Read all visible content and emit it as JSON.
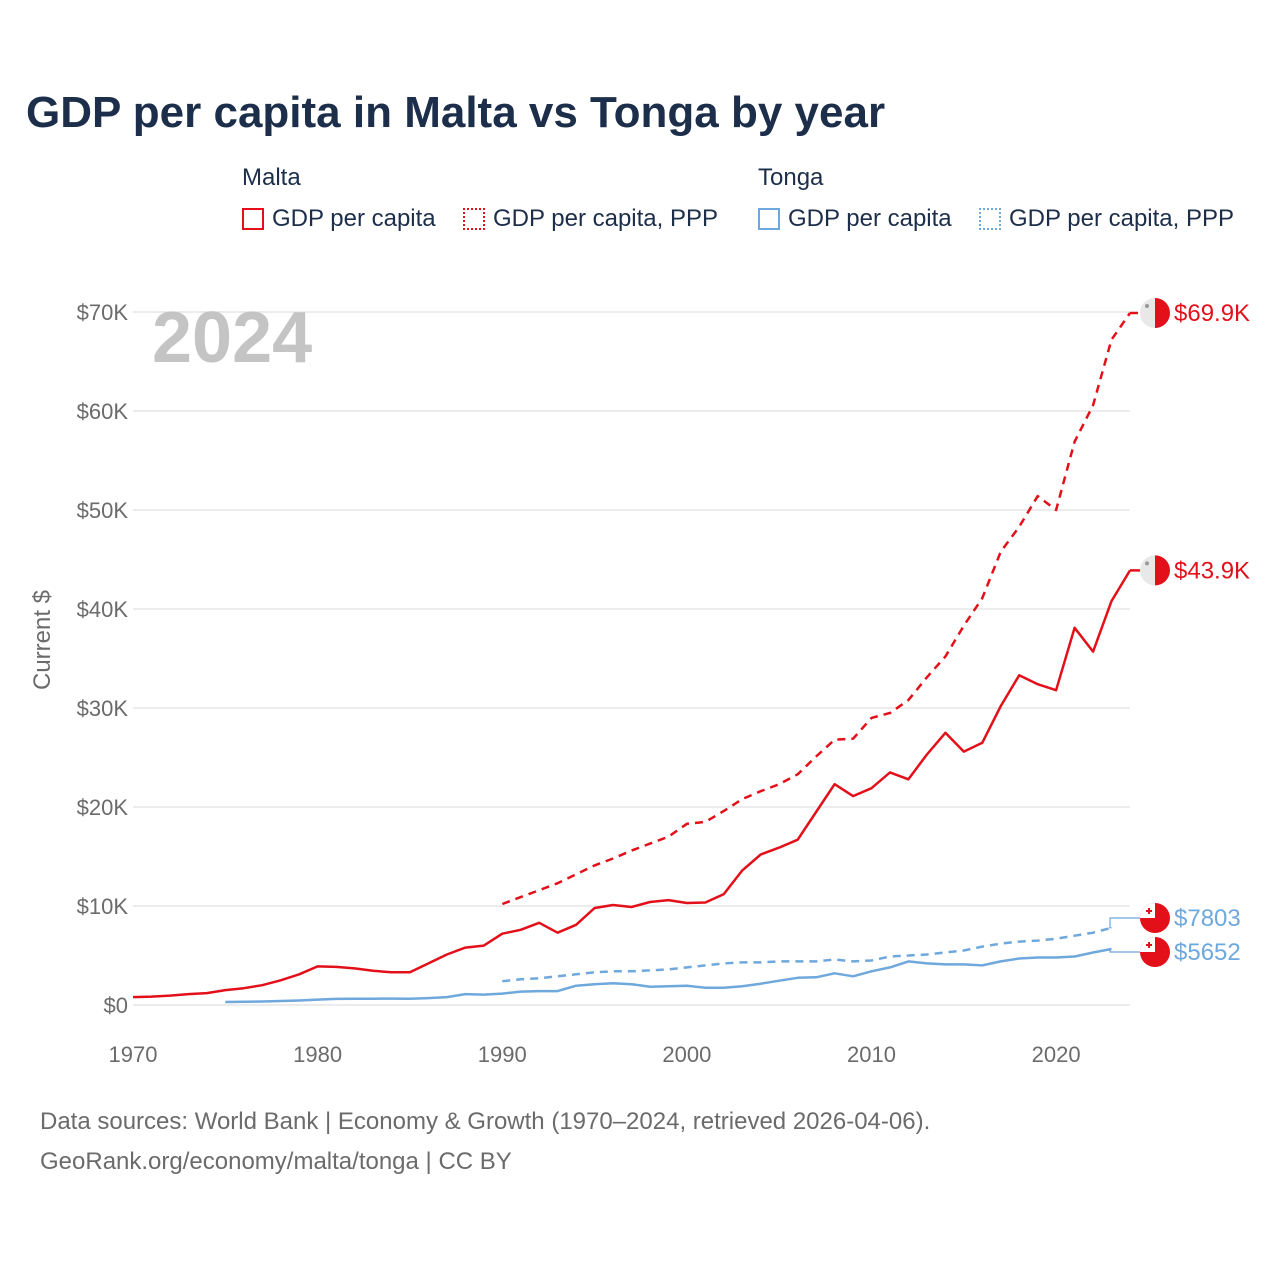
{
  "title": "GDP per capita in Malta vs Tonga by year",
  "legend": {
    "groups": [
      {
        "name": "Malta",
        "items": [
          "GDP per capita",
          "GDP per capita, PPP"
        ]
      },
      {
        "name": "Tonga",
        "items": [
          "GDP per capita",
          "GDP per capita, PPP"
        ]
      }
    ]
  },
  "year_watermark": "2024",
  "footer": {
    "line1": "Data sources: World Bank | Economy & Growth (1970–2024, retrieved 2026-04-06).",
    "line2": "GeoRank.org/economy/malta/tonga | CC BY"
  },
  "colors": {
    "malta": "#e3101a",
    "tonga": "#6fa8dc"
  },
  "chart_data": {
    "type": "line",
    "title": "GDP per capita in Malta vs Tonga by year",
    "xlabel": "",
    "ylabel": "Current $",
    "xlim": [
      1970,
      2024
    ],
    "ylim": [
      0,
      70000
    ],
    "x_ticks": [
      1970,
      1980,
      1990,
      2000,
      2010,
      2020
    ],
    "x_tick_labels": [
      "1970",
      "1980",
      "1990",
      "2000",
      "2010",
      "2020"
    ],
    "y_ticks": [
      0,
      10000,
      20000,
      30000,
      40000,
      50000,
      60000,
      70000
    ],
    "y_tick_labels": [
      "$0",
      "$10K",
      "$20K",
      "$30K",
      "$40K",
      "$50K",
      "$60K",
      "$70K"
    ],
    "grid": true,
    "end_labels": [
      "$69.9K",
      "$43.9K",
      "$7803",
      "$5652"
    ],
    "series": [
      {
        "name": "Malta GDP per capita",
        "country": "Malta",
        "style": "solid",
        "color": "#e3101a",
        "x": [
          1970,
          1971,
          1972,
          1973,
          1974,
          1975,
          1976,
          1977,
          1978,
          1979,
          1980,
          1981,
          1982,
          1983,
          1984,
          1985,
          1986,
          1987,
          1988,
          1989,
          1990,
          1991,
          1992,
          1993,
          1994,
          1995,
          1996,
          1997,
          1998,
          1999,
          2000,
          2001,
          2002,
          2003,
          2004,
          2005,
          2006,
          2007,
          2008,
          2009,
          2010,
          2011,
          2012,
          2013,
          2014,
          2015,
          2016,
          2017,
          2018,
          2019,
          2020,
          2021,
          2022,
          2023,
          2024
        ],
        "values": [
          800,
          850,
          950,
          1100,
          1200,
          1500,
          1700,
          2000,
          2500,
          3100,
          3900,
          3850,
          3700,
          3450,
          3300,
          3300,
          4200,
          5100,
          5800,
          6000,
          7200,
          7600,
          8300,
          7300,
          8100,
          9800,
          10100,
          9900,
          10400,
          10600,
          10300,
          10350,
          11200,
          13600,
          15200,
          15900,
          16700,
          19500,
          22300,
          21100,
          21900,
          23500,
          22800,
          25300,
          27500,
          25600,
          26500,
          30200,
          33300,
          32400,
          31800,
          38100,
          35700,
          40800,
          43900
        ]
      },
      {
        "name": "Malta GDP per capita, PPP",
        "country": "Malta",
        "style": "dashed",
        "color": "#e3101a",
        "x": [
          1990,
          1991,
          1992,
          1993,
          1994,
          1995,
          1996,
          1997,
          1998,
          1999,
          2000,
          2001,
          2002,
          2003,
          2004,
          2005,
          2006,
          2007,
          2008,
          2009,
          2010,
          2011,
          2012,
          2013,
          2014,
          2015,
          2016,
          2017,
          2018,
          2019,
          2020,
          2021,
          2022,
          2023,
          2024
        ],
        "values": [
          10200,
          10900,
          11600,
          12300,
          13200,
          14100,
          14800,
          15600,
          16300,
          17000,
          18300,
          18500,
          19600,
          20800,
          21600,
          22300,
          23300,
          25100,
          26800,
          26900,
          29000,
          29500,
          30800,
          33100,
          35200,
          38300,
          41100,
          45800,
          48300,
          51400,
          50000,
          56900,
          60600,
          67200,
          69900
        ]
      },
      {
        "name": "Tonga GDP per capita",
        "country": "Tonga",
        "style": "solid",
        "color": "#6fa8dc",
        "x": [
          1975,
          1976,
          1977,
          1978,
          1979,
          1980,
          1981,
          1982,
          1983,
          1984,
          1985,
          1986,
          1987,
          1988,
          1989,
          1990,
          1991,
          1992,
          1993,
          1994,
          1995,
          1996,
          1997,
          1998,
          1999,
          2000,
          2001,
          2002,
          2003,
          2004,
          2005,
          2006,
          2007,
          2008,
          2009,
          2010,
          2011,
          2012,
          2013,
          2014,
          2015,
          2016,
          2017,
          2018,
          2019,
          2020,
          2021,
          2022,
          2023
        ],
        "values": [
          300,
          320,
          350,
          400,
          450,
          550,
          620,
          630,
          640,
          650,
          630,
          700,
          800,
          1100,
          1050,
          1150,
          1350,
          1400,
          1400,
          1950,
          2100,
          2200,
          2100,
          1850,
          1900,
          1950,
          1750,
          1750,
          1900,
          2150,
          2450,
          2750,
          2800,
          3200,
          2900,
          3400,
          3800,
          4400,
          4200,
          4100,
          4100,
          4000,
          4400,
          4700,
          4800,
          4800,
          4900,
          5300,
          5652
        ]
      },
      {
        "name": "Tonga GDP per capita, PPP",
        "country": "Tonga",
        "style": "dashed",
        "color": "#6fa8dc",
        "x": [
          1990,
          1991,
          1992,
          1993,
          1994,
          1995,
          1996,
          1997,
          1998,
          1999,
          2000,
          2001,
          2002,
          2003,
          2004,
          2005,
          2006,
          2007,
          2008,
          2009,
          2010,
          2011,
          2012,
          2013,
          2014,
          2015,
          2016,
          2017,
          2018,
          2019,
          2020,
          2021,
          2022,
          2023
        ],
        "values": [
          2400,
          2600,
          2700,
          2900,
          3100,
          3300,
          3400,
          3400,
          3500,
          3600,
          3800,
          4000,
          4200,
          4300,
          4300,
          4400,
          4400,
          4400,
          4600,
          4400,
          4500,
          4900,
          5000,
          5100,
          5300,
          5500,
          5900,
          6200,
          6400,
          6500,
          6700,
          7000,
          7300,
          7803
        ]
      }
    ]
  }
}
